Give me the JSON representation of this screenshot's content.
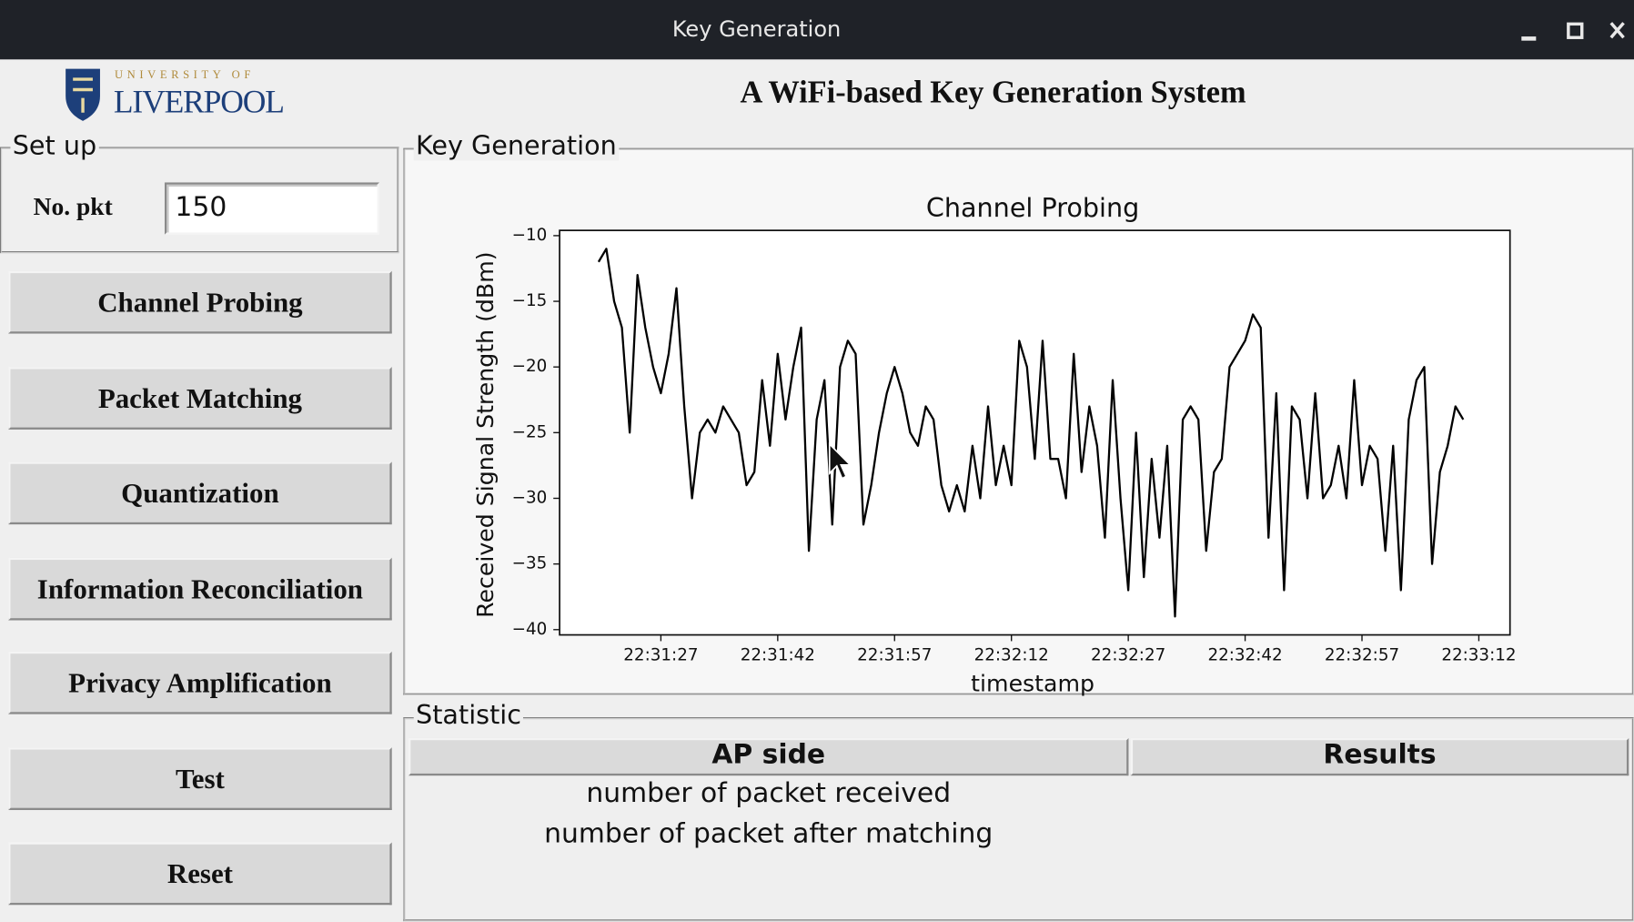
{
  "window": {
    "title": "Key Generation"
  },
  "logo": {
    "top": "UNIVERSITY OF",
    "name": "LIVERPOOL"
  },
  "header": {
    "title": "A WiFi-based Key Generation System"
  },
  "setup": {
    "label": "Set up",
    "field_label": "No. pkt",
    "field_value": 150
  },
  "buttons": [
    "Channel Probing",
    "Packet Matching",
    "Quantization",
    "Information Reconciliation",
    "Privacy Amplification",
    "Test",
    "Reset"
  ],
  "key_generation": {
    "label": "Key Generation"
  },
  "chart_data": {
    "type": "line",
    "title": "Channel Probing",
    "x_label": "timestamp",
    "y_label": "Received Signal Strength (dBm)",
    "color": "#000000",
    "grid": false,
    "x": [
      "22:31:19",
      "22:31:20",
      "22:31:21",
      "22:31:22",
      "22:31:23",
      "22:31:24",
      "22:31:25",
      "22:31:26",
      "22:31:27",
      "22:31:28",
      "22:31:29",
      "22:31:30",
      "22:31:31",
      "22:31:32",
      "22:31:33",
      "22:31:34",
      "22:31:35",
      "22:31:36",
      "22:31:37",
      "22:31:38",
      "22:31:39",
      "22:31:40",
      "22:31:41",
      "22:31:42",
      "22:31:43",
      "22:31:44",
      "22:31:45",
      "22:31:46",
      "22:31:47",
      "22:31:48",
      "22:31:49",
      "22:31:50",
      "22:31:51",
      "22:31:52",
      "22:31:53",
      "22:31:54",
      "22:31:55",
      "22:31:56",
      "22:31:57",
      "22:31:58",
      "22:31:59",
      "22:32:00",
      "22:32:01",
      "22:32:02",
      "22:32:03",
      "22:32:04",
      "22:32:05",
      "22:32:06",
      "22:32:07",
      "22:32:08",
      "22:32:09",
      "22:32:10",
      "22:32:11",
      "22:32:12",
      "22:32:13",
      "22:32:14",
      "22:32:15",
      "22:32:16",
      "22:32:17",
      "22:32:18",
      "22:32:19",
      "22:32:20",
      "22:32:21",
      "22:32:22",
      "22:32:23",
      "22:32:24",
      "22:32:25",
      "22:32:26",
      "22:32:27",
      "22:32:28",
      "22:32:29",
      "22:32:30",
      "22:32:31",
      "22:32:32",
      "22:32:33",
      "22:32:34",
      "22:32:35",
      "22:32:36",
      "22:32:37",
      "22:32:38",
      "22:32:39",
      "22:32:40",
      "22:32:41",
      "22:32:42",
      "22:32:43",
      "22:32:44",
      "22:32:45",
      "22:32:46",
      "22:32:47",
      "22:32:48",
      "22:32:49",
      "22:32:50",
      "22:32:51",
      "22:32:52",
      "22:32:53",
      "22:32:54",
      "22:32:55",
      "22:32:56",
      "22:32:57",
      "22:32:58",
      "22:32:59",
      "22:33:00",
      "22:33:01",
      "22:33:02",
      "22:33:03",
      "22:33:04",
      "22:33:05",
      "22:33:06",
      "22:33:07",
      "22:33:08",
      "22:33:09",
      "22:33:10"
    ],
    "values": [
      -12,
      -11,
      -15,
      -17,
      -25,
      -13,
      -17,
      -20,
      -22,
      -19,
      -14,
      -23,
      -30,
      -25,
      -24,
      -25,
      -23,
      -24,
      -25,
      -29,
      -28,
      -21,
      -26,
      -19,
      -24,
      -20,
      -17,
      -34,
      -24,
      -21,
      -32,
      -20,
      -18,
      -19,
      -32,
      -29,
      -25,
      -22,
      -20,
      -22,
      -25,
      -26,
      -23,
      -24,
      -29,
      -31,
      -29,
      -31,
      -26,
      -30,
      -23,
      -29,
      -26,
      -29,
      -18,
      -20,
      -27,
      -18,
      -27,
      -27,
      -30,
      -19,
      -28,
      -23,
      -26,
      -33,
      -21,
      -30,
      -37,
      -25,
      -36,
      -27,
      -33,
      -26,
      -39,
      -24,
      -23,
      -24,
      -34,
      -28,
      -27,
      -20,
      -19,
      -18,
      -16,
      -17,
      -33,
      -22,
      -37,
      -23,
      -24,
      -30,
      -22,
      -30,
      -29,
      -26,
      -30,
      -21,
      -29,
      -26,
      -27,
      -34,
      -26,
      -37,
      -24,
      -21,
      -20,
      -35,
      -28,
      -26,
      -23,
      -24
    ],
    "xlim": [
      "22:31:14",
      "22:33:16"
    ],
    "xticks": [
      "22:31:27",
      "22:31:42",
      "22:31:57",
      "22:32:12",
      "22:32:27",
      "22:32:42",
      "22:32:57",
      "22:33:12"
    ],
    "ylim": [
      -40.4,
      -9.6
    ],
    "yticks": [
      {
        "value": -10,
        "label": "−10"
      },
      {
        "value": -15,
        "label": "−15"
      },
      {
        "value": -20,
        "label": "−20"
      },
      {
        "value": -25,
        "label": "−25"
      },
      {
        "value": -30,
        "label": "−30"
      },
      {
        "value": -35,
        "label": "−35"
      },
      {
        "value": -40,
        "label": "−40"
      }
    ]
  },
  "statistic": {
    "label": "Statistic",
    "columns": [
      "AP side",
      "Results"
    ],
    "row_labels": [
      "number of packet received",
      "number of packet after matching"
    ]
  }
}
